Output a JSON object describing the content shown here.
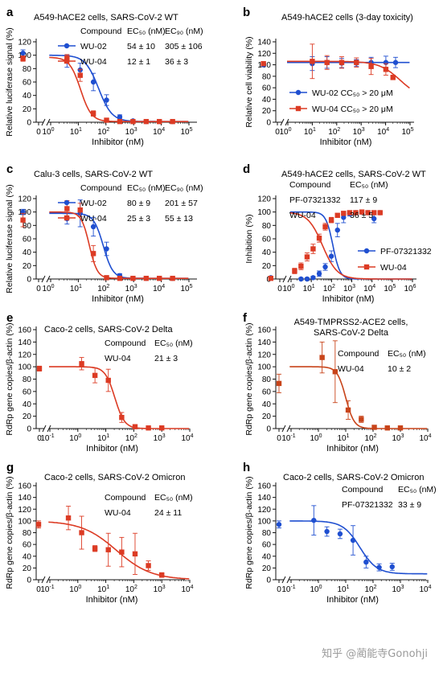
{
  "figure": {
    "watermark": "知乎 @蔺能寺Gonohji"
  },
  "colors": {
    "blue": "#1f4fd0",
    "red": "#dc3b24",
    "orange": "#c8441a",
    "axis": "#111111"
  },
  "chart_data": [
    {
      "panel": "a",
      "type": "scatter",
      "title": "A549-hACE2 cells, SARS-CoV-2 WT",
      "xlabel": "Inhibitor (nM)",
      "ylabel": "Relative luciferase signal (%)",
      "ylim": [
        0,
        120
      ],
      "yticks": [
        0,
        20,
        40,
        60,
        80,
        100,
        120
      ],
      "xlog": true,
      "xexp": [
        0,
        1,
        2,
        3,
        4,
        5
      ],
      "x_zero_tick": true,
      "table": {
        "header": [
          "Compound",
          "EC₅₀ (nM)",
          "EC₉₀ (nM)"
        ],
        "rows": [
          [
            "WU-02",
            "54 ± 10",
            "305 ± 106"
          ],
          [
            "WU-04",
            "12 ± 1",
            "36 ± 3"
          ]
        ]
      },
      "series": [
        {
          "name": "WU-02",
          "color": "#1f4fd0",
          "x": [
            0.1,
            3.9,
            11.7,
            35,
            105,
            316,
            948,
            2844,
            8533,
            25600
          ],
          "y": [
            103,
            91,
            78,
            60,
            33,
            8,
            2,
            1,
            1,
            1
          ],
          "err": [
            5,
            9,
            10,
            13,
            8,
            3,
            1,
            1,
            1,
            1
          ],
          "fit": {
            "top": 100,
            "bottom": 1,
            "ic50": 54,
            "hill": 1.8
          }
        },
        {
          "name": "WU-04",
          "color": "#dc3b24",
          "x": [
            0.1,
            3.9,
            11.7,
            35,
            105,
            316,
            948,
            2844,
            8533,
            25600
          ],
          "y": [
            95,
            96,
            70,
            13,
            3,
            1,
            1,
            1,
            1,
            1
          ],
          "err": [
            4,
            5,
            9,
            4,
            2,
            1,
            1,
            1,
            1,
            1
          ],
          "fit": {
            "top": 97,
            "bottom": 1,
            "ic50": 12,
            "hill": 2.2
          }
        }
      ]
    },
    {
      "panel": "b",
      "type": "scatter",
      "title": "A549-hACE2 cells (3-day toxicity)",
      "xlabel": "Inhibitor (nM)",
      "ylabel": "Relative cell viability (%)",
      "ylim": [
        0,
        140
      ],
      "yticks": [
        0,
        20,
        40,
        60,
        80,
        100,
        120,
        140
      ],
      "xlog": true,
      "xexp": [
        0,
        1,
        2,
        3,
        4,
        5
      ],
      "x_zero_tick": true,
      "legend": [
        {
          "name": "WU-02",
          "label": "CC₅₀ > 20 μM"
        },
        {
          "name": "WU-04",
          "label": "CC₅₀ > 20 μM"
        }
      ],
      "series": [
        {
          "name": "WU-02",
          "color": "#1f4fd0",
          "x": [
            0.1,
            10,
            40,
            160,
            640,
            2560,
            10240,
            25600
          ],
          "y": [
            100,
            102,
            104,
            103,
            103,
            104,
            104,
            104
          ],
          "err": [
            3,
            12,
            10,
            8,
            6,
            9,
            11,
            9
          ],
          "fit": {
            "flat": 104
          }
        },
        {
          "name": "WU-04",
          "color": "#dc3b24",
          "x": [
            0.1,
            10,
            40,
            160,
            640,
            2560,
            10240,
            20000
          ],
          "y": [
            102,
            106,
            104,
            104,
            104,
            97,
            92,
            78
          ],
          "err": [
            3,
            30,
            12,
            10,
            8,
            14,
            10,
            4
          ],
          "fit": {
            "top": 106,
            "bottom": 40,
            "ic50": 40000,
            "hill": 1.0
          }
        }
      ]
    },
    {
      "panel": "c",
      "type": "scatter",
      "title": "Calu-3 cells, SARS-CoV-2 WT",
      "xlabel": "Inhibitor (nM)",
      "ylabel": "Relative luciferase signal (%)",
      "ylim": [
        0,
        120
      ],
      "yticks": [
        0,
        20,
        40,
        60,
        80,
        100,
        120
      ],
      "xlog": true,
      "xexp": [
        0,
        1,
        2,
        3,
        4,
        5
      ],
      "x_zero_tick": true,
      "table": {
        "header": [
          "Compound",
          "EC₅₀ (nM)",
          "EC₉₀ (nM)"
        ],
        "rows": [
          [
            "WU-02",
            "80 ± 9",
            "201 ± 57"
          ],
          [
            "WU-04",
            "25 ± 3",
            "55 ± 13"
          ]
        ]
      },
      "series": [
        {
          "name": "WU-02",
          "color": "#1f4fd0",
          "x": [
            0.1,
            3.9,
            11.7,
            35,
            105,
            316,
            948,
            2844,
            8533,
            25600
          ],
          "y": [
            100,
            90,
            98,
            78,
            45,
            5,
            1,
            1,
            1,
            1
          ],
          "err": [
            4,
            8,
            20,
            14,
            10,
            3,
            1,
            1,
            1,
            1
          ],
          "fit": {
            "top": 98,
            "bottom": 1,
            "ic50": 80,
            "hill": 2.5
          }
        },
        {
          "name": "WU-04",
          "color": "#dc3b24",
          "x": [
            0.1,
            3.9,
            11.7,
            35,
            105,
            316,
            948,
            2844,
            8533,
            25600
          ],
          "y": [
            88,
            105,
            103,
            38,
            2,
            1,
            1,
            1,
            1,
            1
          ],
          "err": [
            10,
            12,
            10,
            12,
            2,
            1,
            1,
            1,
            1,
            1
          ],
          "fit": {
            "top": 100,
            "bottom": 1,
            "ic50": 25,
            "hill": 3.0
          }
        }
      ]
    },
    {
      "panel": "d",
      "type": "scatter",
      "title": "A549-hACE2 cells, SARS-CoV-2 WT",
      "xlabel": "Inhibitor (nM)",
      "ylabel": "Inhibition (%)",
      "ylim": [
        0,
        120
      ],
      "yticks": [
        0,
        20,
        40,
        60,
        80,
        100,
        120
      ],
      "xlog": true,
      "xexp": [
        0,
        1,
        2,
        3,
        4,
        5,
        6
      ],
      "x_zero_tick": true,
      "table": {
        "header": [
          "Compound",
          "EC₅₀ (nM)"
        ],
        "rows": [
          [
            "PF-07321332",
            "117 ± 9"
          ],
          [
            "WU-04",
            "36 ± 5"
          ]
        ]
      },
      "legend": [
        {
          "name": "PF-07321332",
          "label": "PF-07321332"
        },
        {
          "name": "WU-04",
          "label": "WU-04"
        }
      ],
      "series": [
        {
          "name": "PF-07321332",
          "color": "#1f4fd0",
          "x": [
            0.1,
            3.1,
            6.2,
            12.3,
            24.7,
            49,
            98,
            197,
            393,
            787,
            1573,
            3146,
            6291,
            12583,
            25165
          ],
          "y": [
            2,
            0,
            0,
            2,
            8,
            18,
            34,
            73,
            92,
            98,
            99,
            100,
            99,
            90,
            99
          ],
          "err": [
            2,
            2,
            2,
            2,
            4,
            5,
            8,
            10,
            8,
            4,
            3,
            2,
            2,
            6,
            2
          ],
          "fit": {
            "top": 100,
            "bottom": 0,
            "ic50": 117,
            "hill": 2.5
          }
        },
        {
          "name": "WU-04",
          "color": "#dc3b24",
          "x": [
            0.1,
            1.5,
            3.1,
            6.2,
            12.3,
            24.7,
            49,
            98,
            197,
            393,
            787,
            1573,
            3146,
            6291,
            12583,
            25165
          ],
          "y": [
            1,
            12,
            19,
            33,
            45,
            61,
            78,
            88,
            95,
            98,
            99,
            99,
            100,
            99,
            99,
            99
          ],
          "err": [
            3,
            4,
            5,
            6,
            7,
            6,
            5,
            4,
            3,
            2,
            2,
            2,
            2,
            2,
            2,
            2
          ],
          "fit": {
            "top": 100,
            "bottom": 0,
            "ic50": 36,
            "hill": 1.2
          }
        }
      ]
    },
    {
      "panel": "e",
      "type": "scatter",
      "title": "Caco-2 cells, SARS-CoV-2 Delta",
      "xlabel": "Inhibitor (nM)",
      "ylabel": "RdRp gene copies/β-actin (%)",
      "ylim": [
        0,
        160
      ],
      "yticks": [
        0,
        20,
        40,
        60,
        80,
        100,
        120,
        140,
        160
      ],
      "xlog": true,
      "xexp": [
        -1,
        0,
        1,
        2,
        3,
        4
      ],
      "x_zero_tick": true,
      "table": {
        "header": [
          "Compound",
          "EC₅₀ (nM)"
        ],
        "rows": [
          [
            "WU-04",
            "21 ± 3"
          ]
        ]
      },
      "series": [
        {
          "name": "WU-04",
          "color": "#dc3b24",
          "x": [
            0.001,
            1.37,
            4.1,
            12.3,
            37,
            111,
            333,
            1000
          ],
          "y": [
            97,
            105,
            86,
            78,
            18,
            3,
            1,
            1
          ],
          "err": [
            4,
            10,
            12,
            18,
            8,
            2,
            1,
            1
          ],
          "fit": {
            "top": 100,
            "bottom": 0,
            "ic50": 21,
            "hill": 2.5
          }
        }
      ]
    },
    {
      "panel": "f",
      "type": "scatter",
      "title": "A549-TMPRSS2-ACE2 cells, SARS-CoV-2 Delta",
      "xlabel": "Inhibitor (nM)",
      "ylabel": "RdRp gene copies/β-actin (%)",
      "ylim": [
        0,
        160
      ],
      "yticks": [
        0,
        20,
        40,
        60,
        80,
        100,
        120,
        140,
        160
      ],
      "xlog": true,
      "xexp": [
        -1,
        0,
        1,
        2,
        3,
        4
      ],
      "x_zero_tick": true,
      "table": {
        "header": [
          "Compound",
          "EC₅₀ (nM)"
        ],
        "rows": [
          [
            "WU-04",
            "10 ± 2"
          ]
        ]
      },
      "series": [
        {
          "name": "WU-04",
          "color": "#c8441a",
          "x": [
            0.001,
            1.37,
            4.1,
            12.3,
            37,
            111,
            333,
            1000
          ],
          "y": [
            73,
            115,
            92,
            30,
            15,
            2,
            1,
            1
          ],
          "err": [
            15,
            25,
            50,
            15,
            5,
            2,
            1,
            1
          ],
          "fit": {
            "top": 100,
            "bottom": 0,
            "ic50": 10,
            "hill": 2.8
          }
        }
      ]
    },
    {
      "panel": "g",
      "type": "scatter",
      "title": "Caco-2 cells, SARS-CoV-2 Omicron",
      "xlabel": "Inhibitor (nM)",
      "ylabel": "RdRp gene copies/β-actin (%)",
      "ylim": [
        0,
        160
      ],
      "yticks": [
        0,
        20,
        40,
        60,
        80,
        100,
        120,
        140,
        160
      ],
      "xlog": true,
      "xexp": [
        -1,
        0,
        1,
        2,
        3,
        4
      ],
      "x_zero_tick": true,
      "table": {
        "header": [
          "Compound",
          "EC₅₀ (nM)"
        ],
        "rows": [
          [
            "WU-04",
            "24 ± 11"
          ]
        ]
      },
      "series": [
        {
          "name": "WU-04",
          "color": "#dc3b24",
          "x": [
            0.001,
            0.46,
            1.37,
            4.1,
            12.3,
            37,
            111,
            333,
            1000
          ],
          "y": [
            94,
            105,
            80,
            53,
            51,
            47,
            44,
            24,
            8
          ],
          "err": [
            6,
            20,
            28,
            5,
            28,
            25,
            35,
            8,
            4
          ],
          "fit": {
            "top": 100,
            "bottom": 0,
            "ic50": 24,
            "hill": 0.7
          }
        }
      ]
    },
    {
      "panel": "h",
      "type": "scatter",
      "title": "Caco-2 cells, SARS-CoV-2 Omicron",
      "xlabel": "Inhibitor (nM)",
      "ylabel": "RdRp gene copies/β-actin (%)",
      "ylim": [
        0,
        160
      ],
      "yticks": [
        0,
        20,
        40,
        60,
        80,
        100,
        120,
        140,
        160
      ],
      "xlog": true,
      "xexp": [
        -1,
        0,
        1,
        2,
        3,
        4
      ],
      "x_zero_tick": true,
      "table": {
        "header": [
          "Compound",
          "EC₅₀ (nM)"
        ],
        "rows": [
          [
            "PF-07321332",
            "33 ± 9"
          ]
        ]
      },
      "series": [
        {
          "name": "PF-07321332",
          "color": "#1f4fd0",
          "x": [
            0.001,
            0.68,
            2.05,
            6.2,
            18.5,
            55.6,
            167,
            500
          ],
          "y": [
            94,
            101,
            82,
            78,
            67,
            30,
            21,
            22
          ],
          "err": [
            6,
            25,
            8,
            8,
            25,
            10,
            6,
            6
          ],
          "fit": {
            "top": 100,
            "bottom": 10,
            "ic50": 33,
            "hill": 1.4
          }
        }
      ]
    }
  ]
}
